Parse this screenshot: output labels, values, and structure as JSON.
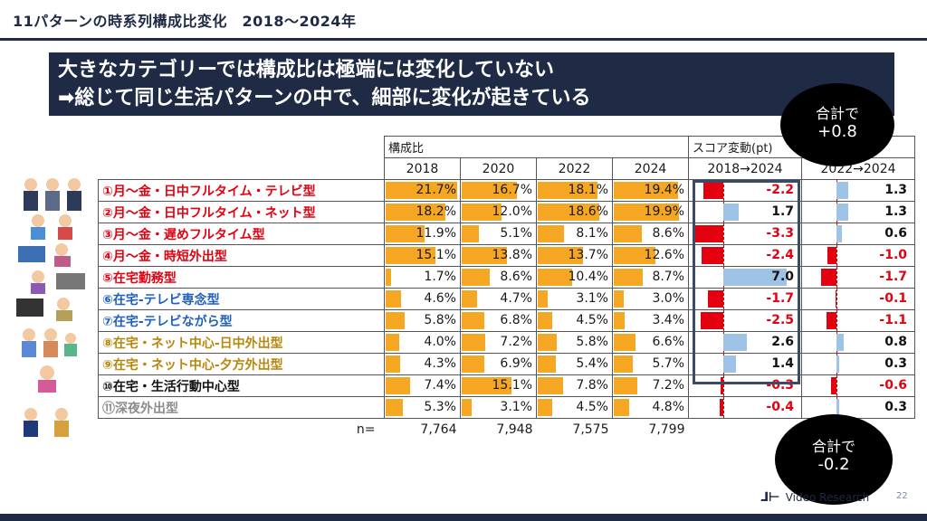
{
  "header": {
    "title": "11パターンの時系列構成比変化　2018～2024年"
  },
  "headline": {
    "line1": "大きなカテゴリーでは構成比は極端には変化していない",
    "line2": "➡総じて同じ生活パターンの中で、細部に変化が起きている"
  },
  "table_header": {
    "share_group": "構成比",
    "score_group": "スコア変動(pt)",
    "years": [
      "2018",
      "2020",
      "2022",
      "2024"
    ],
    "delta_a": "2018→2024",
    "delta_b": "2022→2024",
    "n_label": "n="
  },
  "bubbles": {
    "top": {
      "line1": "合計で",
      "line2": "+0.8"
    },
    "bottom": {
      "line1": "合計で",
      "line2": "-0.2"
    }
  },
  "colors": {
    "navy": "#1f2a44",
    "bar_share": "#f5a623",
    "bar_positive": "#9ec3e6",
    "bar_negative": "#e3000f",
    "red_text": "#e3000f",
    "blue_text": "#1f5fbf",
    "gold_text": "#b8860b",
    "black_text": "#111111",
    "gray_text": "#8c8c8c"
  },
  "chart_data": {
    "type": "table",
    "title": "11パターンの時系列構成比変化　2018～2024年",
    "columns": [
      "2018",
      "2020",
      "2022",
      "2024",
      "2018→2024",
      "2022→2024"
    ],
    "units": {
      "share": "%",
      "delta": "pt"
    },
    "rows": [
      {
        "label": "①月～金・日中フルタイム・テレビ型",
        "color": "red",
        "shares": [
          21.7,
          16.7,
          18.1,
          19.4
        ],
        "share_labels": [
          "21.7%",
          "16.7%",
          "18.1%",
          "19.4%"
        ],
        "d1": -2.2,
        "d1_label": "-2.2",
        "d2": 1.3,
        "d2_label": "1.3"
      },
      {
        "label": "②月～金・日中フルタイム・ネット型",
        "color": "red",
        "shares": [
          18.2,
          12.0,
          18.6,
          19.9
        ],
        "share_labels": [
          "18.2%",
          "12.0%",
          "18.6%",
          "19.9%"
        ],
        "d1": 1.7,
        "d1_label": "1.7",
        "d2": 1.3,
        "d2_label": "1.3"
      },
      {
        "label": "③月～金・遅めフルタイム型",
        "color": "red",
        "shares": [
          11.9,
          5.1,
          8.1,
          8.6
        ],
        "share_labels": [
          "11.9%",
          "5.1%",
          "8.1%",
          "8.6%"
        ],
        "d1": -3.3,
        "d1_label": "-3.3",
        "d2": 0.6,
        "d2_label": "0.6"
      },
      {
        "label": "④月～金・時短外出型",
        "color": "red",
        "shares": [
          15.1,
          13.8,
          13.7,
          12.6
        ],
        "share_labels": [
          "15.1%",
          "13.8%",
          "13.7%",
          "12.6%"
        ],
        "d1": -2.4,
        "d1_label": "-2.4",
        "d2": -1.0,
        "d2_label": "-1.0"
      },
      {
        "label": "⑤在宅勤務型",
        "color": "red",
        "shares": [
          1.7,
          8.6,
          10.4,
          8.7
        ],
        "share_labels": [
          "1.7%",
          "8.6%",
          "10.4%",
          "8.7%"
        ],
        "d1": 7.0,
        "d1_label": "7.0",
        "d2": -1.7,
        "d2_label": "-1.7"
      },
      {
        "label": "⑥在宅-テレビ専念型",
        "color": "blue",
        "shares": [
          4.6,
          4.7,
          3.1,
          3.0
        ],
        "share_labels": [
          "4.6%",
          "4.7%",
          "3.1%",
          "3.0%"
        ],
        "d1": -1.7,
        "d1_label": "-1.7",
        "d2": -0.1,
        "d2_label": "-0.1"
      },
      {
        "label": "⑦在宅-テレビながら型",
        "color": "blue",
        "shares": [
          5.8,
          6.8,
          4.5,
          3.4
        ],
        "share_labels": [
          "5.8%",
          "6.8%",
          "4.5%",
          "3.4%"
        ],
        "d1": -2.5,
        "d1_label": "-2.5",
        "d2": -1.1,
        "d2_label": "-1.1"
      },
      {
        "label": "⑧在宅・ネット中心-日中外出型",
        "color": "gold",
        "shares": [
          4.0,
          7.2,
          5.8,
          6.6
        ],
        "share_labels": [
          "4.0%",
          "7.2%",
          "5.8%",
          "6.6%"
        ],
        "d1": 2.6,
        "d1_label": "2.6",
        "d2": 0.8,
        "d2_label": "0.8"
      },
      {
        "label": "⑨在宅・ネット中心-夕方外出型",
        "color": "gold",
        "shares": [
          4.3,
          6.9,
          5.4,
          5.7
        ],
        "share_labels": [
          "4.3%",
          "6.9%",
          "5.4%",
          "5.7%"
        ],
        "d1": 1.4,
        "d1_label": "1.4",
        "d2": 0.3,
        "d2_label": "0.3"
      },
      {
        "label": "⑩在宅・生活行動中心型",
        "color": "black",
        "shares": [
          7.4,
          15.1,
          7.8,
          7.2
        ],
        "share_labels": [
          "7.4%",
          "15.1%",
          "7.8%",
          "7.2%"
        ],
        "d1": -0.3,
        "d1_label": "-0.3",
        "d2": -0.6,
        "d2_label": "-0.6"
      },
      {
        "label": "⑪深夜外出型",
        "color": "gray",
        "shares": [
          5.3,
          3.1,
          4.5,
          4.8
        ],
        "share_labels": [
          "5.3%",
          "3.1%",
          "4.5%",
          "4.8%"
        ],
        "d1": -0.4,
        "d1_label": "-0.4",
        "d2": 0.3,
        "d2_label": "0.3"
      }
    ],
    "n": [
      "7,764",
      "7,948",
      "7,575",
      "7,799"
    ]
  },
  "footer": {
    "logo_text": "Video Research",
    "page_number": "22"
  }
}
